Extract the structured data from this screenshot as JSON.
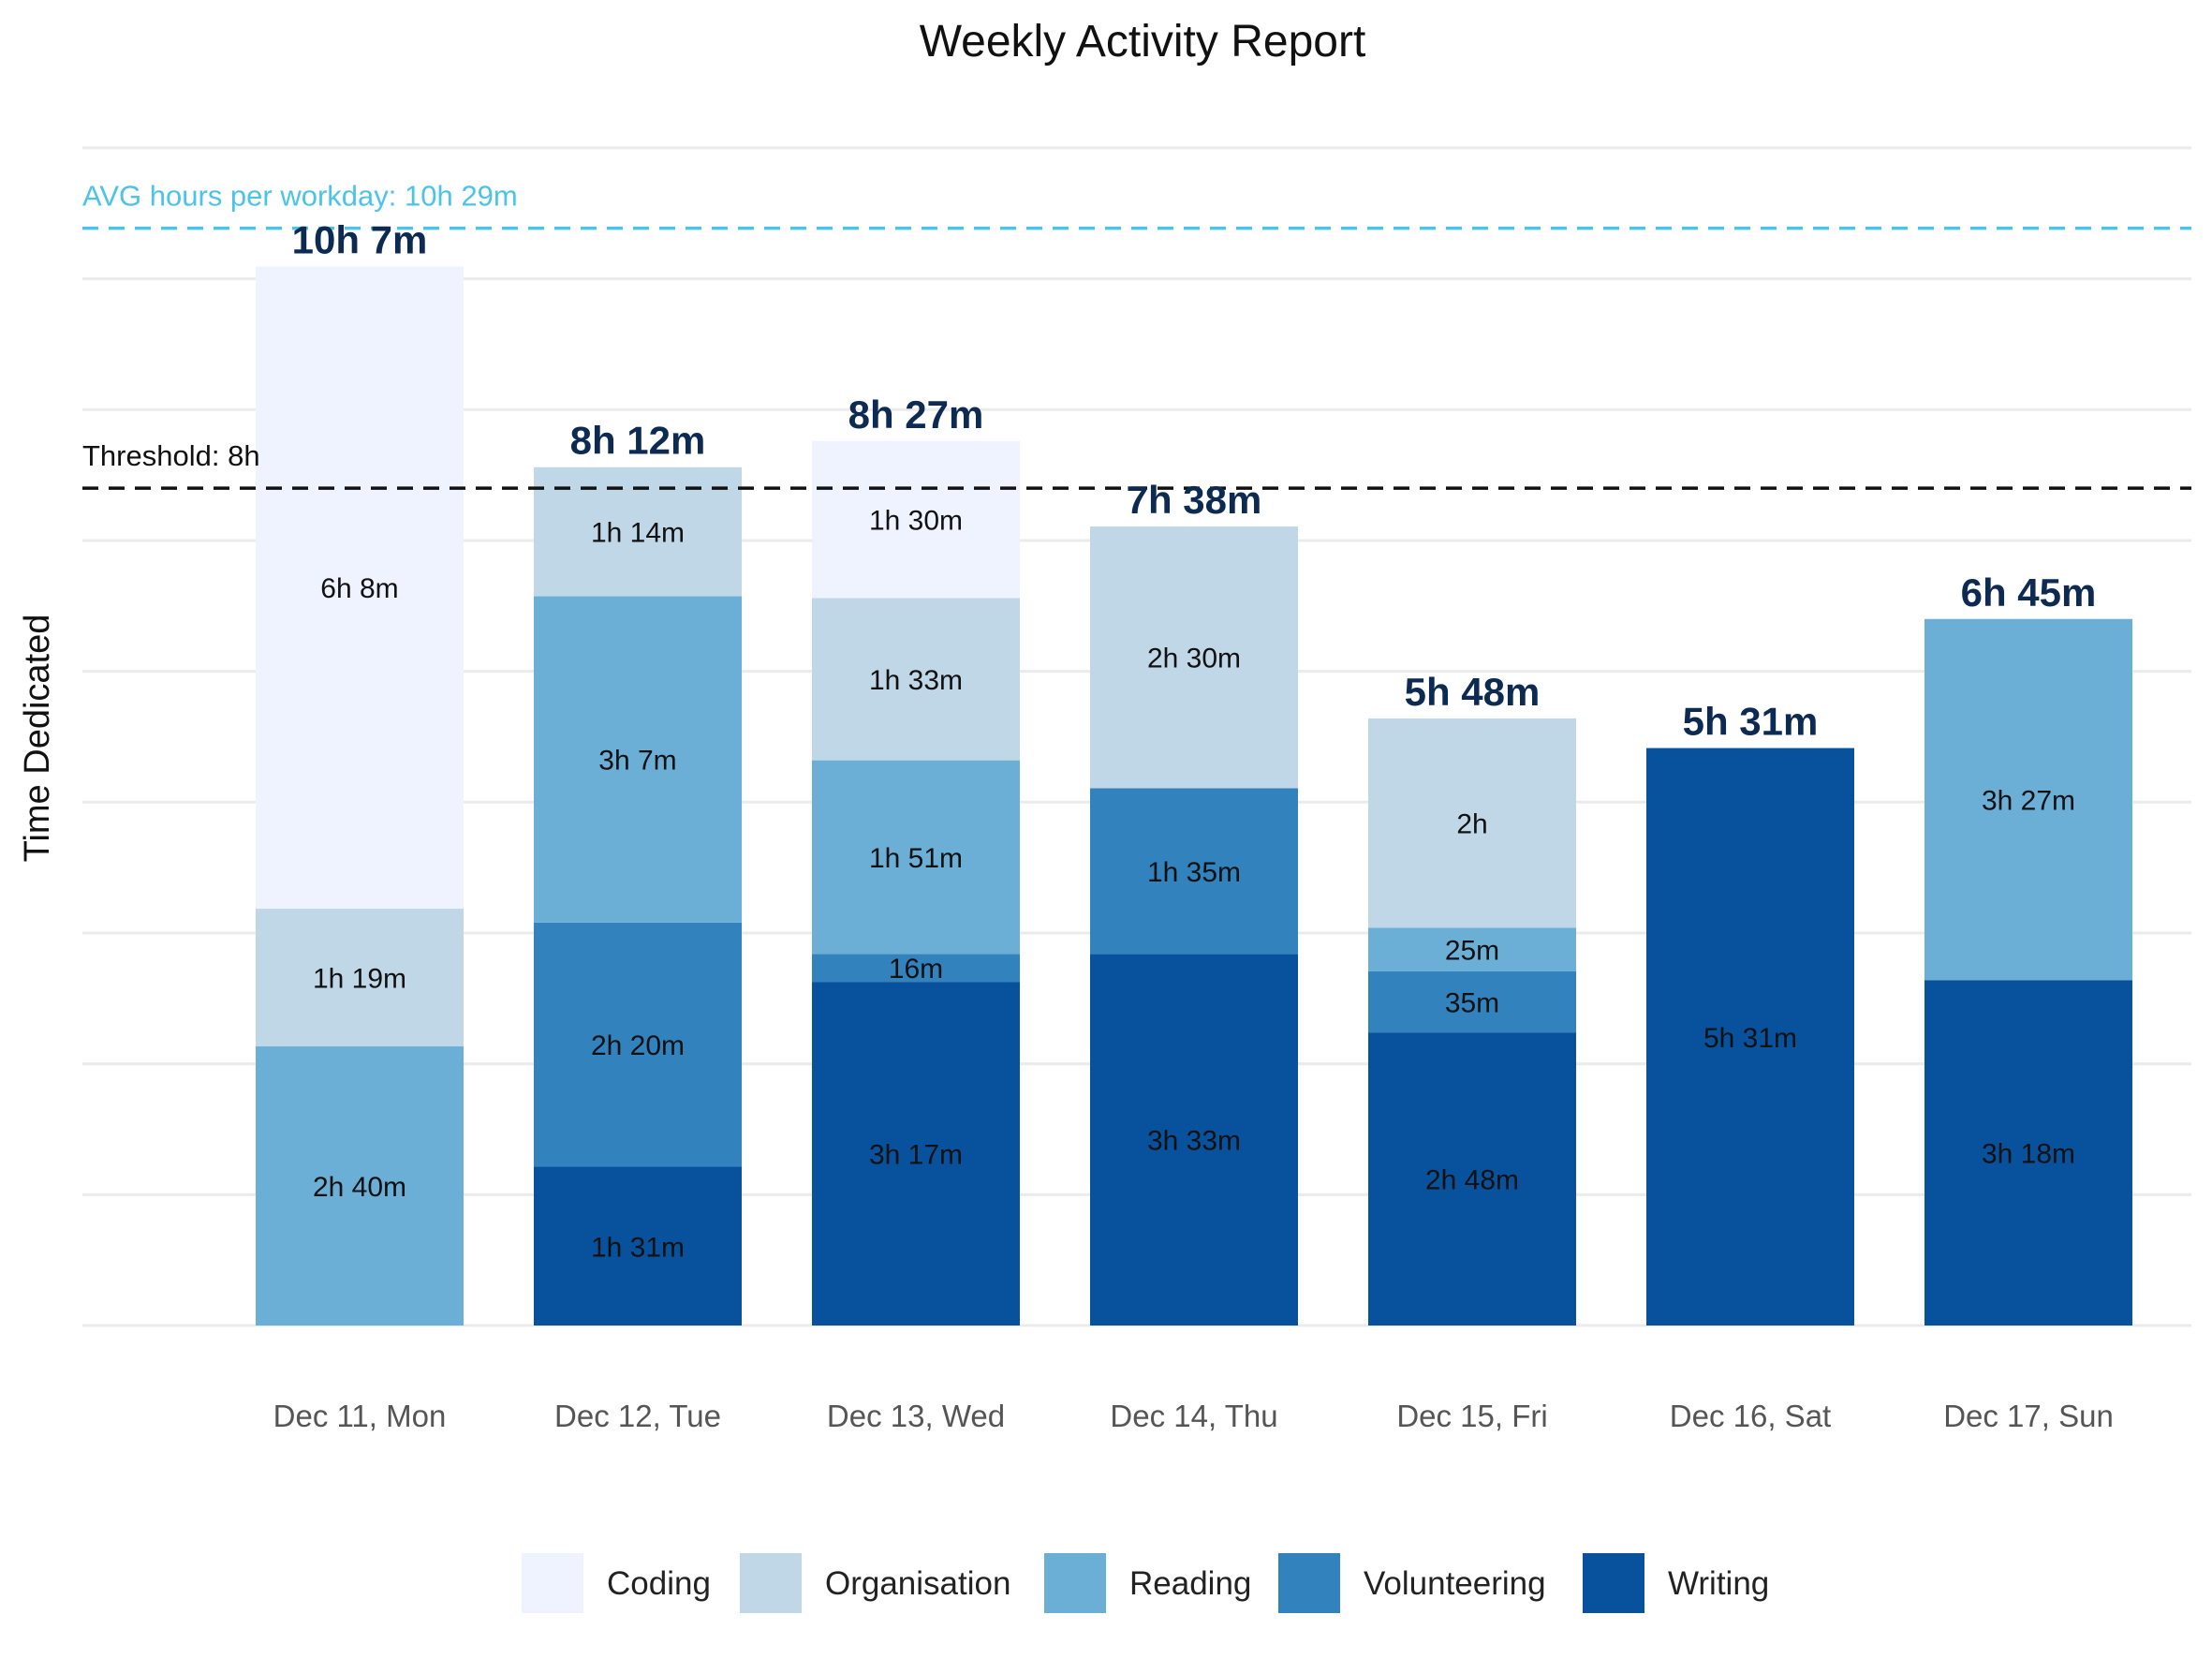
{
  "chart_data": {
    "type": "bar",
    "stacked": true,
    "title": "Weekly Activity Report",
    "xlabel": "",
    "ylabel": "Time Dedicated",
    "ylim": [
      0,
      690
    ],
    "grid": "horizontal",
    "legend_position": "bottom",
    "categories": [
      "Dec 11, Mon",
      "Dec 12, Tue",
      "Dec 13, Wed",
      "Dec 14, Thu",
      "Dec 15, Fri",
      "Dec 16, Sat",
      "Dec 17, Sun"
    ],
    "series": [
      {
        "name": "Writing",
        "color": "#08519c",
        "values": [
          0,
          91,
          197,
          213,
          168,
          331,
          198
        ],
        "labels": [
          "",
          "1h 31m",
          "3h 17m",
          "3h 33m",
          "2h 48m",
          "5h 31m",
          "3h 18m"
        ]
      },
      {
        "name": "Volunteering",
        "color": "#3182bd",
        "values": [
          0,
          140,
          16,
          95,
          35,
          0,
          0
        ],
        "labels": [
          "",
          "2h 20m",
          "16m",
          "1h 35m",
          "35m",
          "",
          ""
        ]
      },
      {
        "name": "Reading",
        "color": "#6baed6",
        "values": [
          160,
          187,
          111,
          0,
          25,
          0,
          207
        ],
        "labels": [
          "2h 40m",
          "3h  7m",
          "1h 51m",
          "",
          "25m",
          "",
          "3h 27m"
        ]
      },
      {
        "name": "Organisation",
        "color": "#c0d7e7",
        "values": [
          79,
          74,
          93,
          150,
          120,
          0,
          0
        ],
        "labels": [
          "1h 19m",
          "1h 14m",
          "1h 33m",
          "2h 30m",
          "2h",
          "",
          ""
        ]
      },
      {
        "name": "Coding",
        "color": "#eff3ff",
        "values": [
          368,
          0,
          90,
          0,
          0,
          0,
          0
        ],
        "labels": [
          "6h  8m",
          "",
          "1h 30m",
          "",
          "",
          "",
          ""
        ]
      }
    ],
    "totals": [
      607,
      492,
      507,
      458,
      348,
      331,
      405
    ],
    "total_labels": [
      "10h  7m",
      "8h 12m",
      "8h 27m",
      "7h 38m",
      "5h 48m",
      "5h 31m",
      "6h 45m"
    ],
    "reference_lines": [
      {
        "label": "AVG hours per workday: 10h 29m",
        "value": 629,
        "color": "#4cc3ea",
        "style": "dashed"
      },
      {
        "label": "Threshold: 8h",
        "value": 480,
        "color": "#111111",
        "style": "dashed"
      }
    ],
    "legend": [
      {
        "name": "Coding",
        "color": "#eff3ff"
      },
      {
        "name": "Organisation",
        "color": "#c0d7e7"
      },
      {
        "name": "Reading",
        "color": "#6baed6"
      },
      {
        "name": "Volunteering",
        "color": "#3182bd"
      },
      {
        "name": "Writing",
        "color": "#08519c"
      }
    ]
  }
}
